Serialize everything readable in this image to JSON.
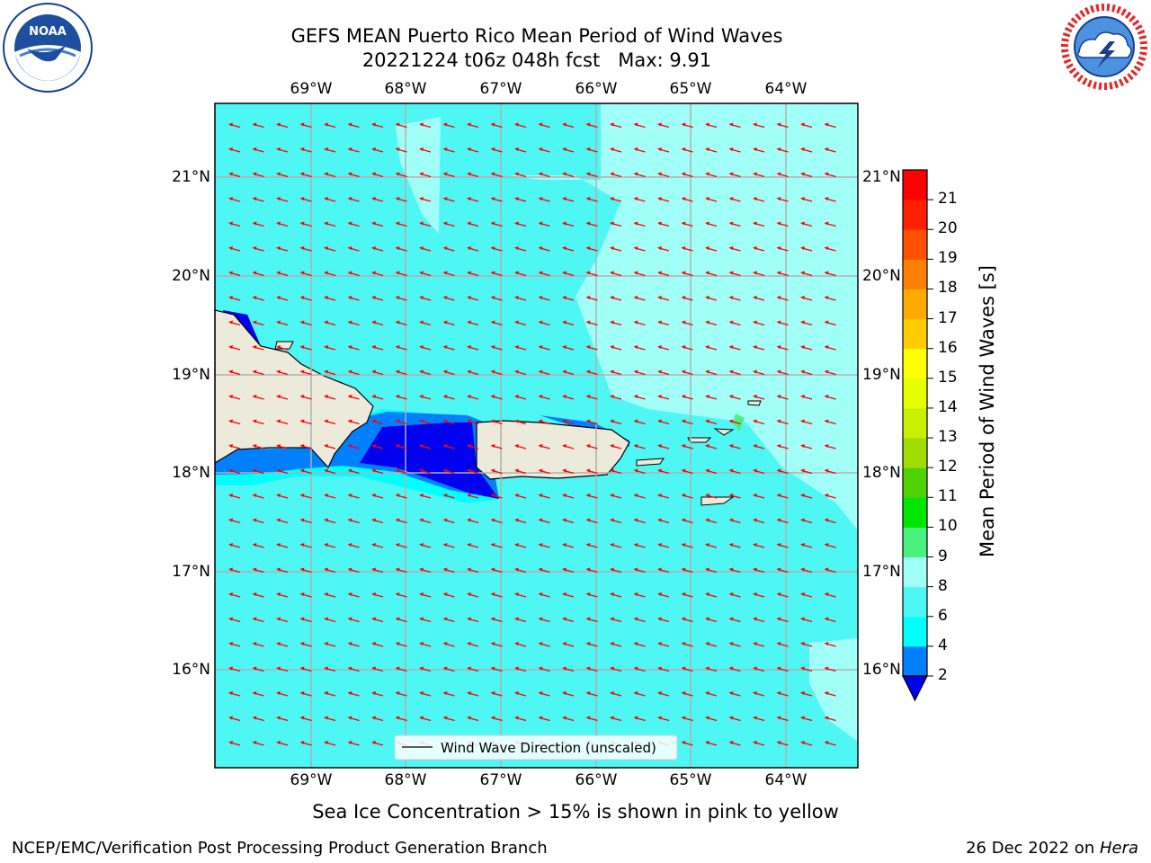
{
  "header": {
    "title_line1": "GEFS MEAN Puerto Rico Mean Period of Wind Waves",
    "title_line2": "20221224 t06z 048h fcst   Max: 9.91"
  },
  "logos": {
    "left": {
      "text": "NOAA",
      "ring_text": "NATIONAL OCEANIC AND ATMOSPHERIC ADMINISTRATION · U.S. DEPARTMENT OF COMMERCE"
    },
    "right": {
      "ring_text": "NATIONAL WEATHER SERVICE"
    }
  },
  "map": {
    "lon_ticks": [
      "69°W",
      "68°W",
      "67°W",
      "66°W",
      "65°W",
      "64°W"
    ],
    "lat_ticks": [
      "21°N",
      "20°N",
      "19°N",
      "18°N",
      "17°N",
      "16°N"
    ],
    "legend_label": "Wind Wave Direction (unscaled)",
    "ocean_color": "#4ff7f4",
    "land_color": "#eceadb",
    "arrow_color": "#ff0000"
  },
  "colorbar": {
    "label": "Mean Period of Wind Waves [s]",
    "ticks": [
      "2",
      "4",
      "6",
      "8",
      "9",
      "10",
      "11",
      "12",
      "13",
      "14",
      "15",
      "16",
      "17",
      "18",
      "19",
      "20",
      "21"
    ],
    "colors": [
      "#0000ee",
      "#0080ff",
      "#00ffff",
      "#4ff7f4",
      "#a0fff7",
      "#4af080",
      "#00e600",
      "#50d200",
      "#a0dc00",
      "#c8f000",
      "#e6ff00",
      "#ffff00",
      "#ffcc00",
      "#ffaa00",
      "#ff8000",
      "#ff5000",
      "#ff2000",
      "#ff0000"
    ]
  },
  "footer": {
    "caption": "Sea Ice Concentration > 15% is shown in pink to yellow",
    "left": "NCEP/EMC/Verification Post Processing Product Generation Branch",
    "right_prefix": "26 Dec 2022 on ",
    "right_host": "Hera"
  }
}
